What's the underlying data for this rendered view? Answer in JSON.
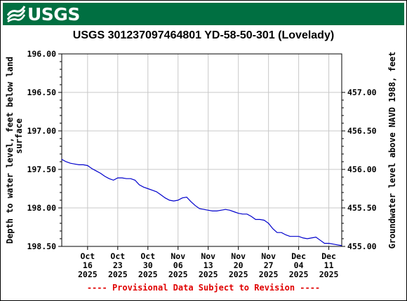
{
  "header": {
    "logo_text": "USGS",
    "logo_icon": "usgs-wave-icon",
    "banner_color": "#006f41"
  },
  "chart_data": {
    "type": "line",
    "title": "USGS 301237097464801 YD-58-50-301 (Lovelady)",
    "ylabel_left": "Depth to water level, feet below land surface",
    "ylabel_left_lines": [
      "Depth to water level, feet below land",
      "surface"
    ],
    "ylabel_right": "Groundwater level above NAVD 1988, feet",
    "ylim_left": [
      196.0,
      198.5
    ],
    "left_inverted": true,
    "left_ticks": [
      "196.00",
      "196.50",
      "197.00",
      "197.50",
      "198.00",
      "198.50"
    ],
    "right_ticks": [
      "457.00",
      "456.50",
      "456.00",
      "455.50",
      "455.00"
    ],
    "right_tick_values": [
      457.0,
      456.5,
      456.0,
      455.5,
      455.0
    ],
    "datum_sum": 653.5,
    "xlim": [
      "2025-10-10",
      "2025-12-14"
    ],
    "x_ticks": [
      {
        "date": "2025-10-16",
        "lines": [
          "Oct",
          "16",
          "2025"
        ]
      },
      {
        "date": "2025-10-23",
        "lines": [
          "Oct",
          "23",
          "2025"
        ]
      },
      {
        "date": "2025-10-30",
        "lines": [
          "Oct",
          "30",
          "2025"
        ]
      },
      {
        "date": "2025-11-06",
        "lines": [
          "Nov",
          "06",
          "2025"
        ]
      },
      {
        "date": "2025-11-13",
        "lines": [
          "Nov",
          "13",
          "2025"
        ]
      },
      {
        "date": "2025-11-20",
        "lines": [
          "Nov",
          "20",
          "2025"
        ]
      },
      {
        "date": "2025-11-27",
        "lines": [
          "Nov",
          "27",
          "2025"
        ]
      },
      {
        "date": "2025-12-04",
        "lines": [
          "Dec",
          "04",
          "2025"
        ]
      },
      {
        "date": "2025-12-11",
        "lines": [
          "Dec",
          "11",
          "2025"
        ]
      }
    ],
    "grid": true,
    "line_color": "#0000cc",
    "series": [
      {
        "points": [
          [
            "2025-10-10",
            197.37
          ],
          [
            "2025-10-11",
            197.4
          ],
          [
            "2025-10-12",
            197.42
          ],
          [
            "2025-10-13",
            197.43
          ],
          [
            "2025-10-14",
            197.44
          ],
          [
            "2025-10-15",
            197.44
          ],
          [
            "2025-10-16",
            197.45
          ],
          [
            "2025-10-17",
            197.49
          ],
          [
            "2025-10-18",
            197.52
          ],
          [
            "2025-10-19",
            197.55
          ],
          [
            "2025-10-20",
            197.59
          ],
          [
            "2025-10-21",
            197.62
          ],
          [
            "2025-10-22",
            197.64
          ],
          [
            "2025-10-23",
            197.61
          ],
          [
            "2025-10-24",
            197.61
          ],
          [
            "2025-10-25",
            197.62
          ],
          [
            "2025-10-26",
            197.62
          ],
          [
            "2025-10-27",
            197.64
          ],
          [
            "2025-10-28",
            197.7
          ],
          [
            "2025-10-29",
            197.73
          ],
          [
            "2025-10-30",
            197.75
          ],
          [
            "2025-10-31",
            197.77
          ],
          [
            "2025-11-01",
            197.79
          ],
          [
            "2025-11-02",
            197.83
          ],
          [
            "2025-11-03",
            197.87
          ],
          [
            "2025-11-04",
            197.9
          ],
          [
            "2025-11-05",
            197.91
          ],
          [
            "2025-11-06",
            197.9
          ],
          [
            "2025-11-07",
            197.87
          ],
          [
            "2025-11-08",
            197.86
          ],
          [
            "2025-11-09",
            197.92
          ],
          [
            "2025-11-10",
            197.97
          ],
          [
            "2025-11-11",
            198.01
          ],
          [
            "2025-11-12",
            198.02
          ],
          [
            "2025-11-13",
            198.03
          ],
          [
            "2025-11-14",
            198.04
          ],
          [
            "2025-11-15",
            198.04
          ],
          [
            "2025-11-16",
            198.03
          ],
          [
            "2025-11-17",
            198.02
          ],
          [
            "2025-11-18",
            198.03
          ],
          [
            "2025-11-19",
            198.05
          ],
          [
            "2025-11-20",
            198.07
          ],
          [
            "2025-11-21",
            198.08
          ],
          [
            "2025-11-22",
            198.08
          ],
          [
            "2025-11-23",
            198.11
          ],
          [
            "2025-11-24",
            198.15
          ],
          [
            "2025-11-25",
            198.15
          ],
          [
            "2025-11-26",
            198.16
          ],
          [
            "2025-11-27",
            198.2
          ],
          [
            "2025-11-28",
            198.27
          ],
          [
            "2025-11-29",
            198.32
          ],
          [
            "2025-11-30",
            198.32
          ],
          [
            "2025-12-01",
            198.35
          ],
          [
            "2025-12-02",
            198.37
          ],
          [
            "2025-12-03",
            198.37
          ],
          [
            "2025-12-04",
            198.37
          ],
          [
            "2025-12-05",
            198.39
          ],
          [
            "2025-12-06",
            198.4
          ],
          [
            "2025-12-07",
            198.39
          ],
          [
            "2025-12-08",
            198.38
          ],
          [
            "2025-12-09",
            198.42
          ],
          [
            "2025-12-10",
            198.46
          ],
          [
            "2025-12-11",
            198.46
          ],
          [
            "2025-12-12",
            198.47
          ],
          [
            "2025-12-13",
            198.48
          ],
          [
            "2025-12-14",
            198.49
          ]
        ]
      }
    ]
  },
  "footer": {
    "text": "---- Provisional Data Subject to Revision ----",
    "color": "#e00000"
  }
}
